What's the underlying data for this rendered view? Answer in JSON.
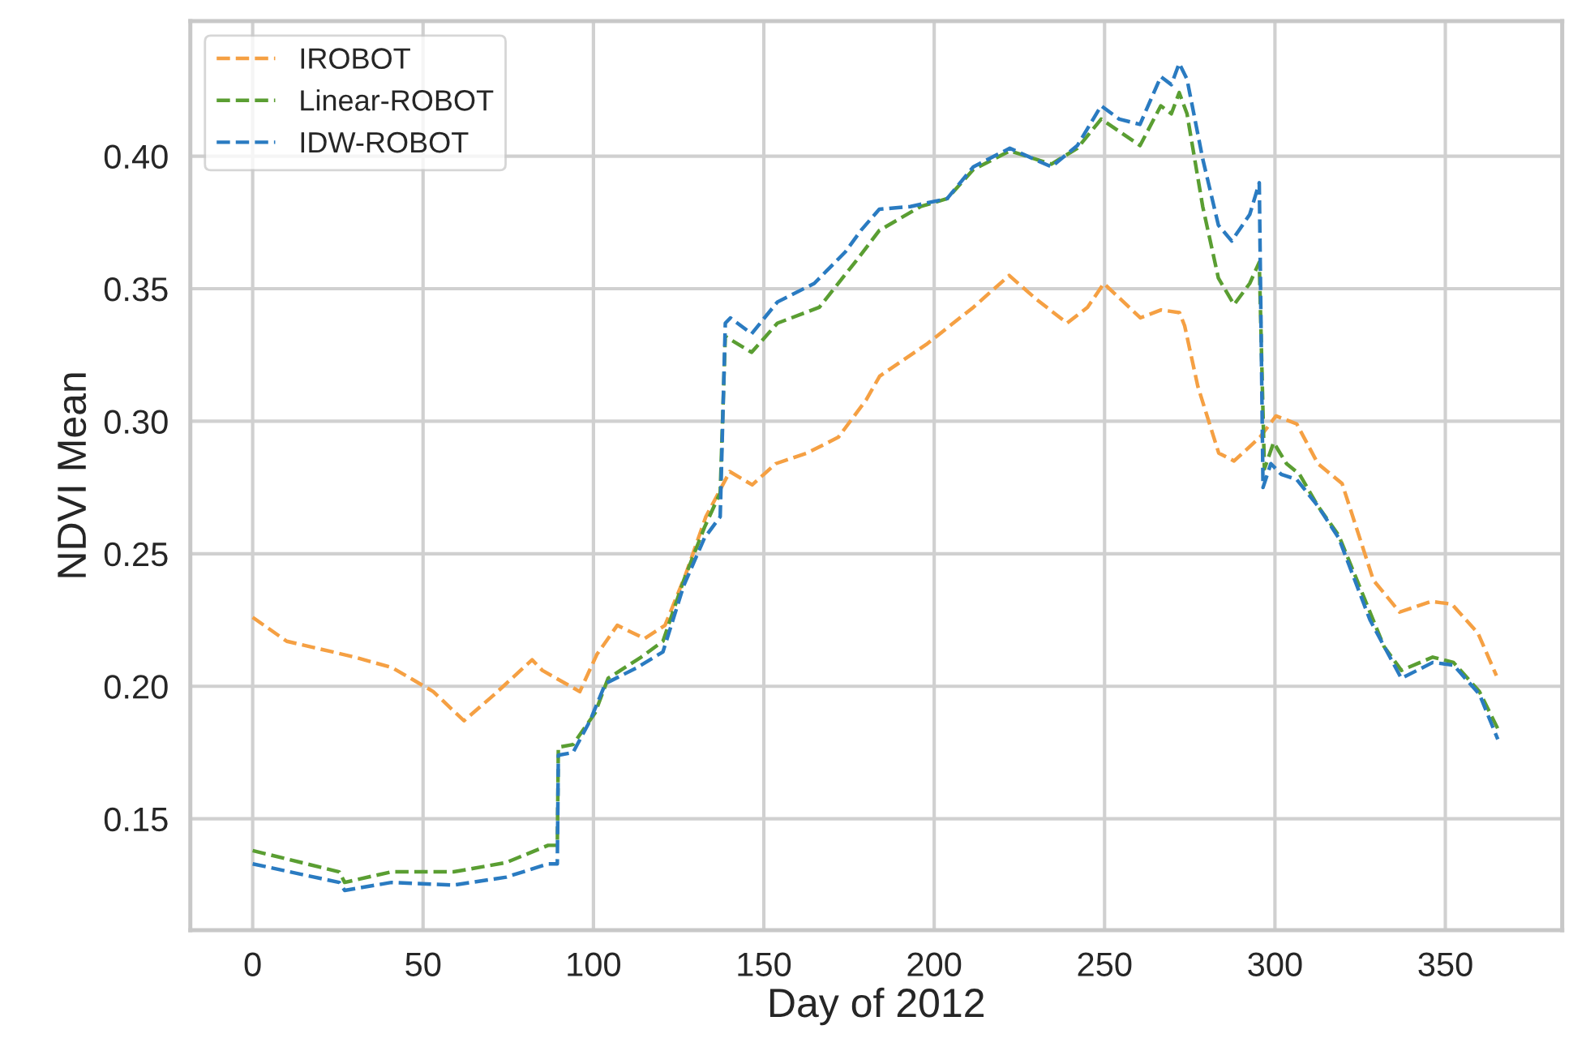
{
  "chart_data": {
    "type": "line",
    "xlabel": "Day of 2012",
    "ylabel": "NDVI Mean",
    "xlim": [
      -18.3,
      384.3
    ],
    "ylim": [
      0.108,
      0.451
    ],
    "xticks": [
      0,
      50,
      100,
      150,
      200,
      250,
      300,
      350
    ],
    "yticks": [
      {
        "value": 0.15,
        "label": "0.15"
      },
      {
        "value": 0.2,
        "label": "0.20"
      },
      {
        "value": 0.25,
        "label": "0.25"
      },
      {
        "value": 0.3,
        "label": "0.30"
      },
      {
        "value": 0.35,
        "label": "0.35"
      },
      {
        "value": 0.4,
        "label": "0.40"
      }
    ],
    "grid": true,
    "legend": "top left",
    "line_style": "dashed",
    "series": [
      {
        "name": "IROBOT",
        "color": "#f5a043",
        "x": [
          0,
          10,
          30,
          41,
          53,
          62,
          71,
          82,
          85,
          96,
          101,
          107,
          115,
          121,
          127,
          133,
          140,
          146.6,
          153.5,
          162.7,
          171.9,
          180,
          184,
          197.7,
          211.5,
          222,
          230,
          239,
          245,
          249.8,
          260.5,
          266.6,
          272,
          273.5,
          277.4,
          283.5,
          288,
          295.6,
          300.3,
          306.4,
          312.6,
          319.7,
          328.9,
          336.6,
          345.8,
          351.9,
          359.6,
          365
        ],
        "values": [
          0.226,
          0.217,
          0.211,
          0.207,
          0.198,
          0.187,
          0.197,
          0.21,
          0.206,
          0.198,
          0.212,
          0.223,
          0.218,
          0.223,
          0.242,
          0.264,
          0.281,
          0.276,
          0.284,
          0.288,
          0.294,
          0.308,
          0.317,
          0.329,
          0.343,
          0.355,
          0.346,
          0.337,
          0.343,
          0.352,
          0.339,
          0.342,
          0.341,
          0.336,
          0.313,
          0.288,
          0.285,
          0.294,
          0.302,
          0.299,
          0.284,
          0.2765,
          0.24,
          0.228,
          0.232,
          0.231,
          0.22,
          0.204
        ]
      },
      {
        "name": "Linear-ROBOT",
        "color": "#5a9e32",
        "x": [
          0,
          25.4,
          27,
          40.7,
          59,
          74.4,
          86.7,
          89.4,
          89.7,
          94,
          100.5,
          104.3,
          114,
          120.4,
          126.5,
          132.6,
          137.2,
          138.7,
          146.4,
          154,
          166.3,
          178,
          183.9,
          196,
          203.8,
          211.5,
          222.2,
          234.4,
          242,
          249,
          260.4,
          266.5,
          269.6,
          271.9,
          274.2,
          278.8,
          283.4,
          288,
          292.6,
          295.4,
          296.9,
          299.6,
          303.4,
          307.2,
          312.6,
          318.7,
          332,
          337.1,
          346.3,
          352.4,
          360,
          365.4
        ],
        "values": [
          0.138,
          0.13,
          0.126,
          0.13,
          0.13,
          0.1335,
          0.14,
          0.14,
          0.177,
          0.178,
          0.19,
          0.203,
          0.211,
          0.217,
          0.24,
          0.26,
          0.273,
          0.332,
          0.326,
          0.337,
          0.343,
          0.362,
          0.372,
          0.381,
          0.384,
          0.395,
          0.402,
          0.397,
          0.403,
          0.414,
          0.404,
          0.419,
          0.416,
          0.424,
          0.416,
          0.381,
          0.354,
          0.344,
          0.352,
          0.36,
          0.282,
          0.292,
          0.284,
          0.28,
          0.268,
          0.257,
          0.215,
          0.206,
          0.211,
          0.209,
          0.198,
          0.184
        ]
      },
      {
        "name": "IDW-ROBOT",
        "color": "#2a7bc1",
        "x": [
          0,
          25.4,
          27,
          40.7,
          59,
          74.4,
          86.7,
          89.4,
          89.7,
          94,
          99,
          103.5,
          112.7,
          120.4,
          126.5,
          132.6,
          137.2,
          138.7,
          140.2,
          146.4,
          154,
          164.8,
          174,
          178.5,
          183.9,
          193,
          203.8,
          211.5,
          222.2,
          229.8,
          234.4,
          242,
          249,
          254.3,
          260.4,
          266.5,
          269.6,
          271.9,
          274.2,
          278.8,
          283.4,
          287.3,
          292.6,
          295.4,
          296.5,
          298.8,
          301.8,
          306.4,
          312.6,
          318.7,
          327.9,
          337.1,
          346.3,
          352.4,
          360,
          365.4
        ],
        "values": [
          0.133,
          0.126,
          0.123,
          0.126,
          0.125,
          0.128,
          0.133,
          0.133,
          0.174,
          0.175,
          0.187,
          0.201,
          0.207,
          0.213,
          0.238,
          0.256,
          0.264,
          0.337,
          0.339,
          0.333,
          0.345,
          0.352,
          0.364,
          0.372,
          0.38,
          0.381,
          0.384,
          0.396,
          0.403,
          0.3986,
          0.396,
          0.404,
          0.419,
          0.414,
          0.412,
          0.43,
          0.427,
          0.435,
          0.429,
          0.399,
          0.374,
          0.368,
          0.378,
          0.39,
          0.275,
          0.284,
          0.28,
          0.278,
          0.268,
          0.256,
          0.225,
          0.203,
          0.209,
          0.208,
          0.197,
          0.18
        ]
      }
    ]
  }
}
